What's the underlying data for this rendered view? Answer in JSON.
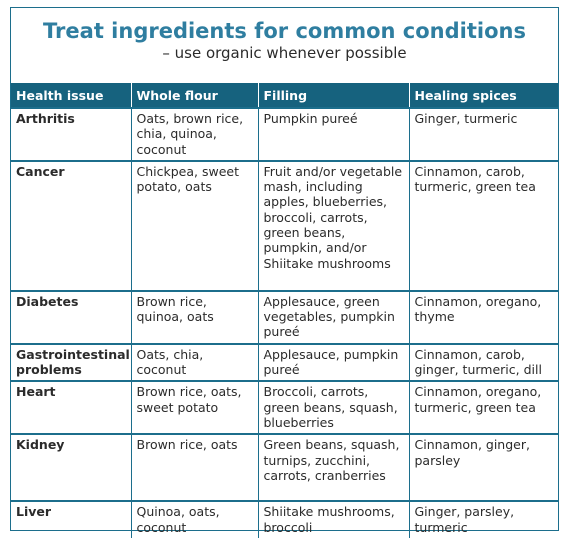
{
  "title": "Treat ingredients for common conditions",
  "subtitle": "– use organic whenever possible",
  "columns": [
    "Health issue",
    "Whole flour",
    "Filling",
    "Healing spices"
  ],
  "rows": [
    {
      "issue": "Arthritis",
      "flour": "Oats, brown rice, chia, quinoa, coconut",
      "filling": "Pumpkin pureé",
      "spices": "Ginger, turmeric"
    },
    {
      "issue": "Cancer",
      "flour": "Chickpea, sweet potato, oats",
      "filling": "Fruit and/or vegetable mash, including apples, blueberries, broccoli, carrots, green beans, pumpkin, and/or Shiitake mushrooms",
      "spices": "Cinnamon, carob, turmeric, green tea"
    },
    {
      "issue": "Diabetes",
      "flour": "Brown rice, quinoa, oats",
      "filling": "Applesauce, green vegetables, pumpkin pureé",
      "spices": "Cinnamon, oregano, thyme"
    },
    {
      "issue": "Gastrointestinal problems",
      "flour": "Oats, chia, coconut",
      "filling": "Applesauce, pumpkin pureé",
      "spices": "Cinnamon, carob, ginger, turmeric, dill"
    },
    {
      "issue": "Heart",
      "flour": "Brown rice, oats, sweet potato",
      "filling": "Broccoli, carrots, green beans, squash, blueberries",
      "spices": "Cinnamon, oregano, turmeric, green tea"
    },
    {
      "issue": "Kidney",
      "flour": "Brown rice, oats",
      "filling": "Green beans, squash, turnips, zucchini, carrots, cranberries",
      "spices": "Cinnamon, ginger, parsley"
    },
    {
      "issue": "Liver",
      "flour": "Quinoa, oats, coconut",
      "filling": "Shiitake mushrooms, broccoli",
      "spices": "Ginger, parsley, turmeric"
    }
  ]
}
